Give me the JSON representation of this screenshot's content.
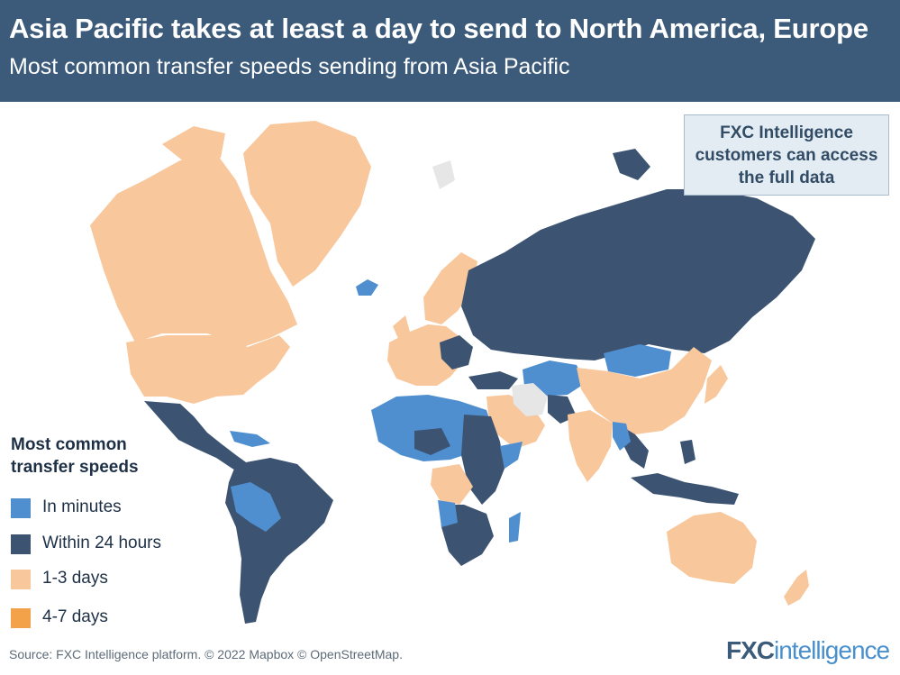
{
  "header": {
    "title": "Asia Pacific takes at least a day to send to North America, Europe",
    "subtitle": "Most common transfer speeds sending from Asia Pacific"
  },
  "callout": {
    "lines": [
      "FXC Intelligence",
      "customers can access",
      "the full data"
    ]
  },
  "legend": {
    "title_lines": [
      "Most common",
      "transfer speeds"
    ],
    "items": [
      {
        "label": "In minutes",
        "color": "#4f8fcf"
      },
      {
        "label": "Within 24 hours",
        "color": "#3c5472"
      },
      {
        "label": "1-3 days",
        "color": "#f8c79c"
      },
      {
        "label": "4-7 days",
        "color": "#f4a24a"
      }
    ]
  },
  "map_colors": {
    "minutes": "#4f8fcf",
    "within_24h": "#3c5472",
    "one_to_three_days": "#f8c79c",
    "no_data": "#e6e6e6"
  },
  "footer": {
    "source": "Source: FXC Intelligence platform. © 2022 Mapbox © OpenStreetMap.",
    "logo_main": "FXC",
    "logo_accent": "intelligence"
  }
}
